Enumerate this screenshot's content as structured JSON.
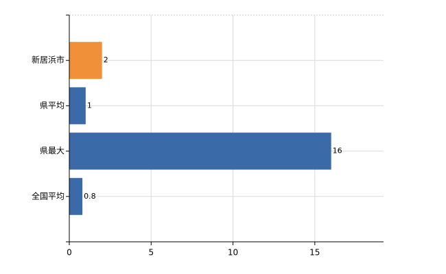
{
  "chart_data": {
    "type": "bar",
    "orientation": "horizontal",
    "categories": [
      "新居浜市",
      "県平均",
      "県最大",
      "全国平均"
    ],
    "values": [
      2,
      1,
      16,
      0.8
    ],
    "colors": [
      "#f0913a",
      "#3b6aa9",
      "#3b6aa9",
      "#3b6aa9"
    ],
    "xlim": [
      0,
      19.2
    ],
    "xticks": [
      0,
      5,
      10,
      15
    ],
    "grid": true
  }
}
